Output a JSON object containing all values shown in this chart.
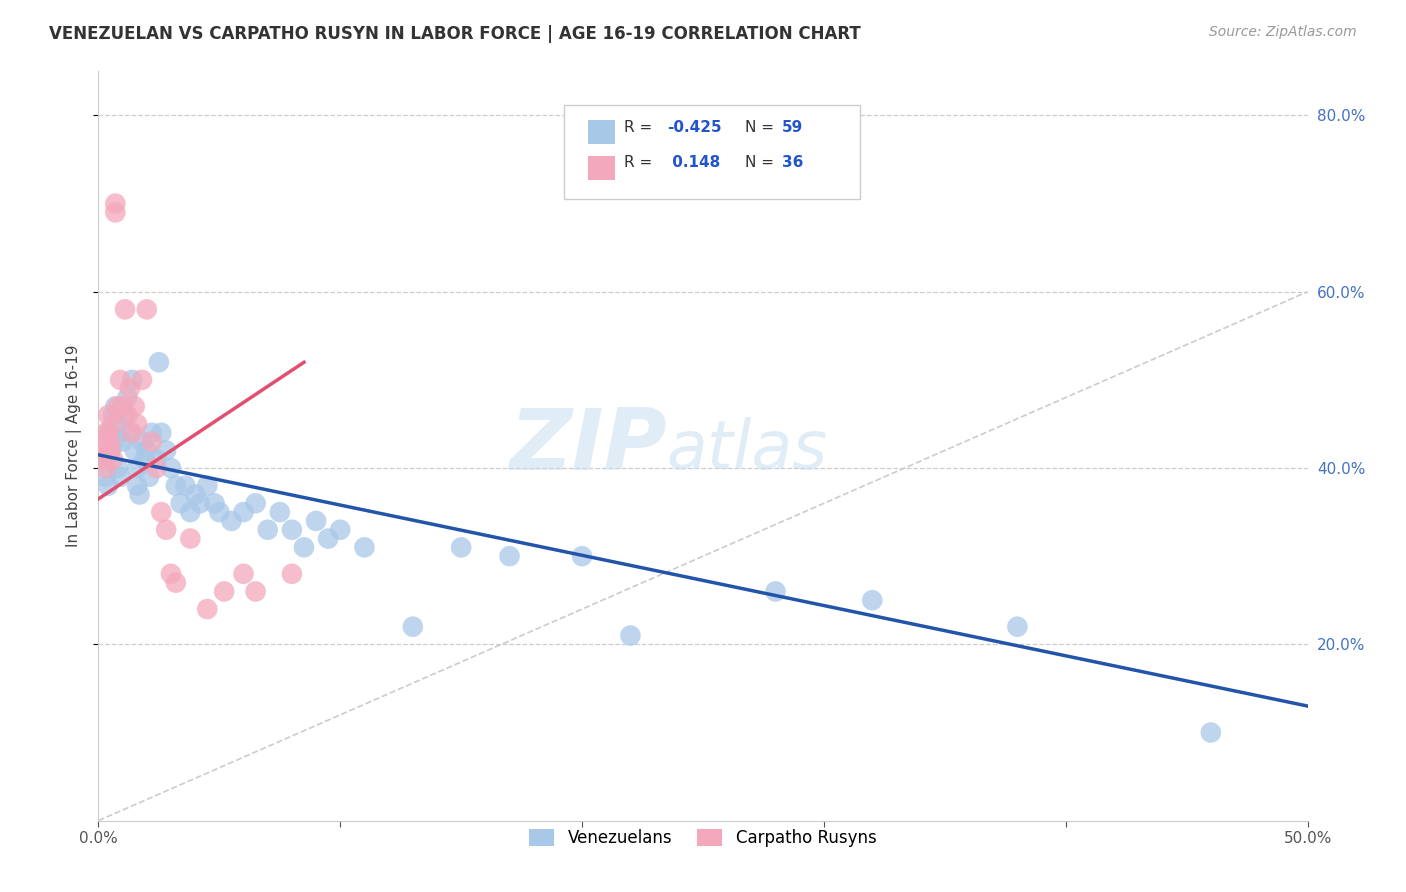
{
  "title": "VENEZUELAN VS CARPATHO RUSYN IN LABOR FORCE | AGE 16-19 CORRELATION CHART",
  "source": "Source: ZipAtlas.com",
  "ylabel": "In Labor Force | Age 16-19",
  "xlim": [
    0.0,
    0.5
  ],
  "ylim": [
    0.0,
    0.85
  ],
  "venezuelan_color": "#A8C8E8",
  "carpatho_color": "#F4A8BB",
  "venezuelan_line_color": "#2255AA",
  "carpatho_line_color": "#E05070",
  "diagonal_color": "#CCCCCC",
  "legend_R_venezuelan": "-0.425",
  "legend_N_venezuelan": "59",
  "legend_R_carpatho": "0.148",
  "legend_N_carpatho": "36",
  "watermark_zip": "ZIP",
  "watermark_atlas": "atlas",
  "venezuelan_scatter_x": [
    0.002,
    0.003,
    0.004,
    0.005,
    0.005,
    0.006,
    0.007,
    0.007,
    0.008,
    0.008,
    0.009,
    0.01,
    0.011,
    0.012,
    0.013,
    0.014,
    0.015,
    0.016,
    0.016,
    0.017,
    0.018,
    0.019,
    0.02,
    0.021,
    0.022,
    0.024,
    0.025,
    0.026,
    0.028,
    0.03,
    0.032,
    0.034,
    0.036,
    0.038,
    0.04,
    0.042,
    0.045,
    0.048,
    0.05,
    0.055,
    0.06,
    0.065,
    0.07,
    0.075,
    0.08,
    0.085,
    0.09,
    0.095,
    0.1,
    0.11,
    0.13,
    0.15,
    0.17,
    0.2,
    0.22,
    0.28,
    0.32,
    0.38,
    0.46
  ],
  "venezuelan_scatter_y": [
    0.41,
    0.39,
    0.38,
    0.42,
    0.44,
    0.46,
    0.47,
    0.43,
    0.45,
    0.4,
    0.39,
    0.43,
    0.46,
    0.48,
    0.44,
    0.5,
    0.42,
    0.4,
    0.38,
    0.37,
    0.43,
    0.41,
    0.42,
    0.39,
    0.44,
    0.41,
    0.52,
    0.44,
    0.42,
    0.4,
    0.38,
    0.36,
    0.38,
    0.35,
    0.37,
    0.36,
    0.38,
    0.36,
    0.35,
    0.34,
    0.35,
    0.36,
    0.33,
    0.35,
    0.33,
    0.31,
    0.34,
    0.32,
    0.33,
    0.31,
    0.22,
    0.31,
    0.3,
    0.3,
    0.21,
    0.26,
    0.25,
    0.22,
    0.1
  ],
  "carpatho_scatter_x": [
    0.001,
    0.002,
    0.002,
    0.003,
    0.003,
    0.004,
    0.004,
    0.005,
    0.005,
    0.006,
    0.006,
    0.007,
    0.007,
    0.008,
    0.009,
    0.01,
    0.011,
    0.012,
    0.013,
    0.014,
    0.015,
    0.016,
    0.018,
    0.02,
    0.022,
    0.024,
    0.026,
    0.028,
    0.03,
    0.032,
    0.038,
    0.045,
    0.052,
    0.06,
    0.065,
    0.08
  ],
  "carpatho_scatter_y": [
    0.42,
    0.41,
    0.43,
    0.4,
    0.44,
    0.46,
    0.44,
    0.42,
    0.43,
    0.45,
    0.41,
    0.7,
    0.69,
    0.47,
    0.5,
    0.47,
    0.58,
    0.46,
    0.49,
    0.44,
    0.47,
    0.45,
    0.5,
    0.58,
    0.43,
    0.4,
    0.35,
    0.33,
    0.28,
    0.27,
    0.32,
    0.24,
    0.26,
    0.28,
    0.26,
    0.28
  ],
  "ven_trend_x0": 0.0,
  "ven_trend_x1": 0.5,
  "ven_trend_y0": 0.415,
  "ven_trend_y1": 0.13,
  "car_trend_x0": 0.0,
  "car_trend_x1": 0.085,
  "car_trend_y0": 0.365,
  "car_trend_y1": 0.52
}
